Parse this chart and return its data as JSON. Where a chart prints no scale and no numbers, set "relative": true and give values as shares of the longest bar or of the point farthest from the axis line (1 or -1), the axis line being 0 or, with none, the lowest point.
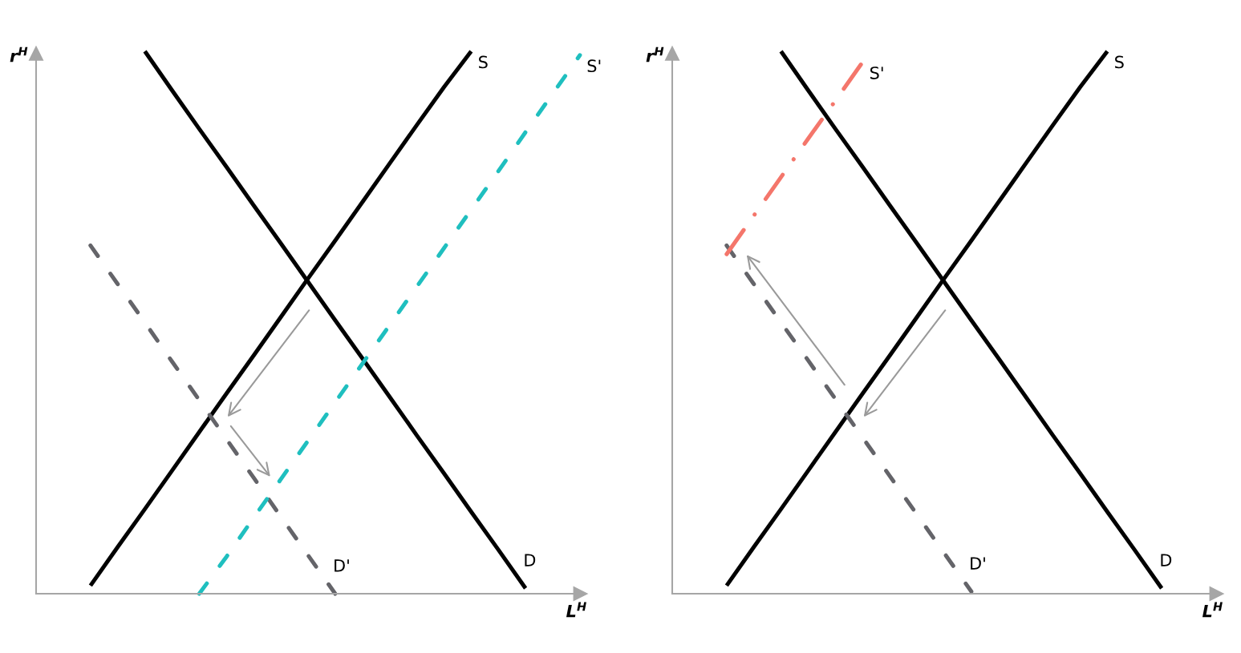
{
  "chart_data": [
    {
      "type": "line",
      "relative": true,
      "tick_labels": false,
      "line_style": "solid",
      "xlabel": "L$^{H}$",
      "ylabel": "r$^{H}$",
      "categories": [
        null,
        null,
        null,
        null,
        null,
        null,
        null,
        null,
        null,
        null,
        null,
        null,
        null,
        null,
        null,
        null,
        null,
        null,
        null,
        null,
        null
      ],
      "series": [
        {
          "name": "S",
          "color": "#000000",
          "values": [
            null,
            null,
            0.015,
            0.086,
            0.156,
            0.227,
            0.298,
            0.369,
            0.439,
            0.51,
            0.581,
            0.651,
            0.722,
            0.793,
            0.864,
            0.934,
            1.0,
            null,
            null,
            null,
            null
          ]
        },
        {
          "name": "D",
          "color": "#000000",
          "values": [
            null,
            null,
            null,
            null,
            1.0,
            0.928,
            0.857,
            0.787,
            0.716,
            0.646,
            0.575,
            0.504,
            0.434,
            0.363,
            0.292,
            0.222,
            0.151,
            0.081,
            0.01,
            null,
            null
          ]
        },
        {
          "name": "D'",
          "color": "#646469",
          "line_style": "dashed",
          "values": [
            null,
            null,
            0.642,
            0.571,
            0.5,
            0.428,
            0.357,
            0.285,
            0.214,
            0.142,
            0.071,
            0.0,
            null,
            null,
            null,
            null,
            null,
            null,
            null,
            null,
            null
          ]
        },
        {
          "name": "S'",
          "color": "#1fbfbf",
          "line_style": "dashed",
          "values": [
            null,
            null,
            null,
            null,
            null,
            null,
            0.0,
            0.068,
            0.14,
            0.211,
            0.282,
            0.353,
            0.424,
            0.495,
            0.566,
            0.637,
            0.708,
            0.779,
            0.851,
            0.922,
            0.993
          ]
        }
      ]
    },
    {
      "type": "line",
      "relative": true,
      "tick_labels": false,
      "line_style": "solid",
      "xlabel": "L$^{H}$",
      "ylabel": "r$^{H}$",
      "categories": [
        null,
        null,
        null,
        null,
        null,
        null,
        null,
        null,
        null,
        null,
        null,
        null,
        null,
        null,
        null,
        null,
        null,
        null,
        null,
        null,
        null
      ],
      "series": [
        {
          "name": "S",
          "color": "#000000",
          "values": [
            null,
            null,
            0.015,
            0.086,
            0.156,
            0.227,
            0.298,
            0.369,
            0.439,
            0.51,
            0.581,
            0.651,
            0.722,
            0.793,
            0.864,
            0.934,
            1.0,
            null,
            null,
            null,
            null
          ]
        },
        {
          "name": "D",
          "color": "#000000",
          "values": [
            null,
            null,
            null,
            null,
            1.0,
            0.928,
            0.857,
            0.787,
            0.716,
            0.646,
            0.575,
            0.504,
            0.434,
            0.363,
            0.292,
            0.222,
            0.151,
            0.081,
            0.01,
            null,
            null
          ]
        },
        {
          "name": "D'",
          "color": "#646469",
          "line_style": "dashed",
          "values": [
            null,
            null,
            0.642,
            0.571,
            0.5,
            0.43,
            0.359,
            0.288,
            0.217,
            0.146,
            0.075,
            0.004,
            null,
            null,
            null,
            null,
            null,
            null,
            null,
            null,
            null
          ]
        },
        {
          "name": "S'",
          "color": "#f4766b",
          "line_style": "dashdot",
          "values": [
            null,
            null,
            0.626,
            0.697,
            0.768,
            0.839,
            0.909,
            0.98,
            null,
            null,
            null,
            null,
            null,
            null,
            null,
            null,
            null,
            null,
            null,
            null,
            null
          ]
        }
      ]
    }
  ]
}
